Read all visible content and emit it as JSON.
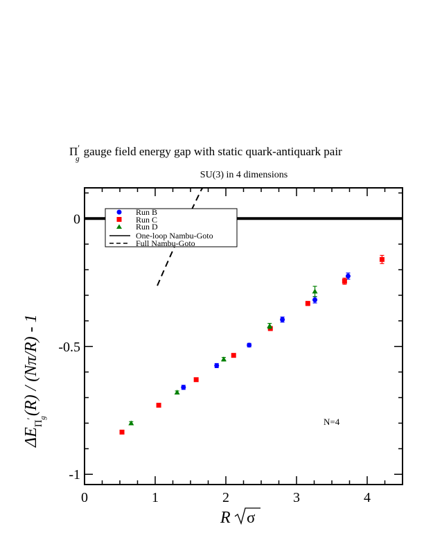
{
  "chart_data": {
    "type": "scatter",
    "title_main": "gauge field energy gap with static quark-antiquark pair",
    "title_symbol": "Π",
    "title_symbol_sub": "g",
    "title_symbol_prime": "′",
    "subtitle": "SU(3) in 4 dimensions",
    "xlabel_var": "R",
    "xlabel_sigma": "σ",
    "ylabel_prefix": "ΔE",
    "ylabel_sub_pi": "Π",
    "ylabel_sub_prime": "′",
    "ylabel_sub_g": "g",
    "ylabel_suffix": "(R) / (Nπ/R) - 1",
    "annotation": "N=4",
    "xlim": [
      0,
      4.5
    ],
    "ylim": [
      -1.04,
      0.12
    ],
    "x_ticks": [
      0,
      1,
      2,
      3,
      4
    ],
    "x_tick_labels": [
      "0",
      "1",
      "2",
      "3",
      "4"
    ],
    "y_ticks": [
      0,
      -0.5,
      -1
    ],
    "y_tick_labels": [
      "0",
      "-0.5",
      "-1"
    ],
    "grid": false,
    "legend_position": "top-left",
    "series": [
      {
        "name": "Run B",
        "marker": "circle",
        "color": "#0000ff",
        "points": [
          {
            "x": 1.4,
            "y": -0.66,
            "err": 0.008
          },
          {
            "x": 1.87,
            "y": -0.575,
            "err": 0.008
          },
          {
            "x": 2.33,
            "y": -0.495,
            "err": 0.007
          },
          {
            "x": 2.8,
            "y": -0.395,
            "err": 0.01
          },
          {
            "x": 3.26,
            "y": -0.318,
            "err": 0.012
          },
          {
            "x": 3.73,
            "y": -0.225,
            "err": 0.012
          }
        ]
      },
      {
        "name": "Run C",
        "marker": "square",
        "color": "#ff0000",
        "points": [
          {
            "x": 0.53,
            "y": -0.835,
            "err": 0.006
          },
          {
            "x": 1.05,
            "y": -0.73,
            "err": 0.006
          },
          {
            "x": 1.58,
            "y": -0.63,
            "err": 0.007
          },
          {
            "x": 2.11,
            "y": -0.535,
            "err": 0.007
          },
          {
            "x": 2.63,
            "y": -0.43,
            "err": 0.008
          },
          {
            "x": 3.16,
            "y": -0.332,
            "err": 0.008
          },
          {
            "x": 3.68,
            "y": -0.245,
            "err": 0.012
          },
          {
            "x": 4.21,
            "y": -0.16,
            "err": 0.016
          }
        ]
      },
      {
        "name": "Run D",
        "marker": "triangle",
        "color": "#008000",
        "points": [
          {
            "x": 0.66,
            "y": -0.8,
            "err": 0.006
          },
          {
            "x": 1.31,
            "y": -0.68,
            "err": 0.006
          },
          {
            "x": 1.97,
            "y": -0.55,
            "err": 0.007
          },
          {
            "x": 2.62,
            "y": -0.42,
            "err": 0.01
          },
          {
            "x": 3.26,
            "y": -0.285,
            "err": 0.02
          }
        ]
      }
    ],
    "reference_line": {
      "y": 0
    },
    "curves": [
      {
        "name": "One-loop Nambu-Goto",
        "style": "solid",
        "x_range": [
          2.53,
          4.5
        ]
      },
      {
        "name": "Full Nambu-Goto",
        "style": "dashed",
        "x_range": [
          1.03,
          4.5
        ]
      }
    ]
  }
}
